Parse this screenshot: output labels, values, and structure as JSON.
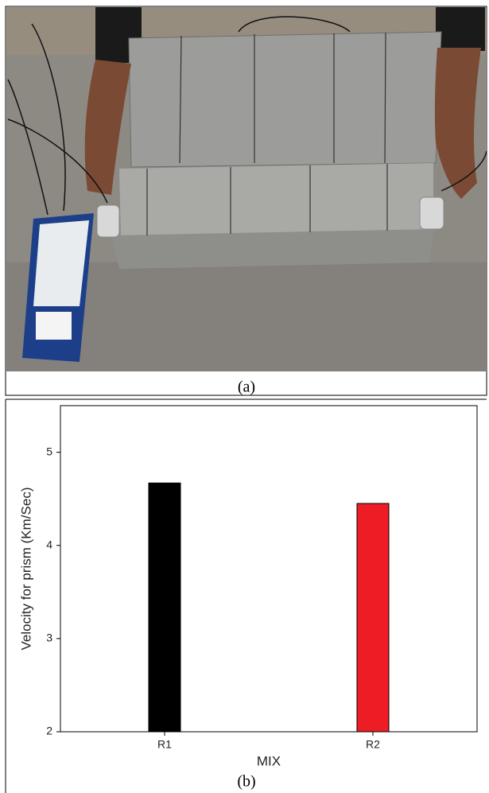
{
  "captions": {
    "a": "(a)",
    "b": "(b)"
  },
  "chart_data": {
    "type": "bar",
    "categories": [
      "R1",
      "R2"
    ],
    "values": [
      4.67,
      4.45
    ],
    "colors": [
      "#000000",
      "#ee1c24"
    ],
    "xlabel": "MIX",
    "ylabel": "Velocity for prism (Km/Sec)",
    "ylim": [
      2,
      5.5
    ],
    "yticks": [
      2,
      3,
      4,
      5
    ],
    "grid": false
  }
}
